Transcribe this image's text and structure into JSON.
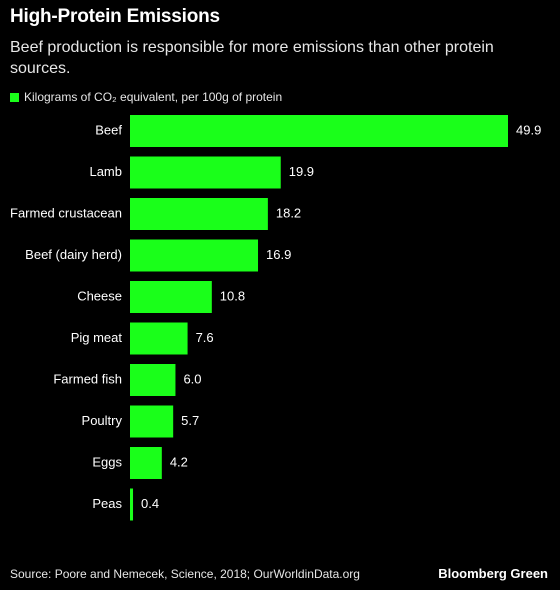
{
  "header": {
    "title": "High-Protein Emissions",
    "subtitle": "Beef production is responsible for more emissions than other protein sources."
  },
  "footer": {
    "source": "Source: Poore and Nemecek, Science, 2018; OurWorldinData.org",
    "brand": "Bloomberg Green"
  },
  "colors": {
    "bar": "#1aff1a",
    "background": "#000000",
    "text": "#ffffff"
  },
  "chart_data": {
    "type": "bar",
    "orientation": "horizontal",
    "categories": [
      "Beef",
      "Lamb",
      "Farmed crustacean",
      "Beef (dairy herd)",
      "Cheese",
      "Pig meat",
      "Farmed fish",
      "Poultry",
      "Eggs",
      "Peas"
    ],
    "series": [
      {
        "name": "Kilograms of CO₂ equivalent, per 100g of protein",
        "values": [
          49.9,
          19.9,
          18.2,
          16.9,
          10.8,
          7.6,
          6.0,
          5.7,
          4.2,
          0.4
        ]
      }
    ],
    "value_labels": [
      "49.9",
      "19.9",
      "18.2",
      "16.9",
      "10.8",
      "7.6",
      "6.0",
      "5.7",
      "4.2",
      "0.4"
    ],
    "xlim": [
      0,
      49.9
    ],
    "legend": "top-left",
    "grid": false
  }
}
